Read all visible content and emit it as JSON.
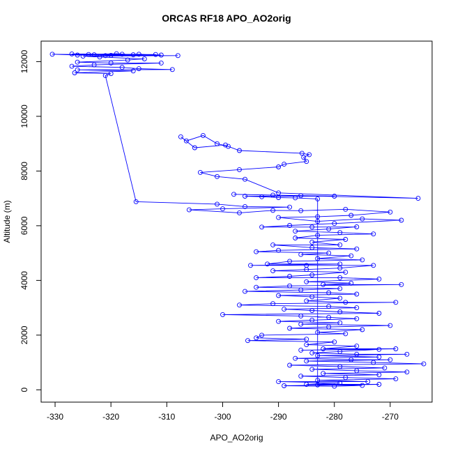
{
  "chart_data": {
    "type": "scatter",
    "title": "ORCAS RF18 APO_AO2orig",
    "xlabel": "APO_AO2orig",
    "ylabel": "Altitude (m)",
    "xlim": [
      -332.5,
      -262.5
    ],
    "ylim": [
      -450,
      12750
    ],
    "xticks": [
      -330,
      -320,
      -310,
      -300,
      -290,
      -280,
      -270
    ],
    "xtick_labels": [
      "-330",
      "-320",
      "-310",
      "-300",
      "-290",
      "-280",
      "-270"
    ],
    "yticks": [
      0,
      2000,
      4000,
      6000,
      8000,
      10000,
      12000
    ],
    "ytick_labels": [
      "0",
      "2000",
      "4000",
      "6000",
      "8000",
      "10000",
      "12000"
    ],
    "grid": false,
    "legend": "none",
    "colors": {
      "series": "#0000ff",
      "axes": "#000000"
    },
    "marker": "open-circle",
    "connected": true,
    "series": [
      {
        "points": [
          [
            -318,
            12270
          ],
          [
            -327,
            12280
          ],
          [
            -312,
            12260
          ],
          [
            -323,
            12250
          ],
          [
            -330.5,
            12270
          ],
          [
            -326,
            12240
          ],
          [
            -320,
            12230
          ],
          [
            -315,
            12270
          ],
          [
            -311,
            12240
          ],
          [
            -324,
            12260
          ],
          [
            -319,
            12290
          ],
          [
            -316,
            12250
          ],
          [
            -321,
            12220
          ],
          [
            -308,
            12220
          ],
          [
            -325,
            12200
          ],
          [
            -322,
            12170
          ],
          [
            -314,
            12100
          ],
          [
            -317,
            12060
          ],
          [
            -326,
            11980
          ],
          [
            -320,
            11950
          ],
          [
            -311,
            11950
          ],
          [
            -323,
            11880
          ],
          [
            -327,
            11830
          ],
          [
            -318,
            11790
          ],
          [
            -315,
            11740
          ],
          [
            -309,
            11710
          ],
          [
            -326,
            11700
          ],
          [
            -316,
            11660
          ],
          [
            -326.5,
            11590
          ],
          [
            -320,
            11560
          ],
          [
            -321,
            11490
          ],
          [
            -315.5,
            6880
          ],
          [
            -301,
            6790
          ],
          [
            -296,
            6700
          ],
          [
            -288,
            6680
          ],
          [
            -300,
            6620
          ],
          [
            -306,
            6580
          ],
          [
            -297,
            6470
          ],
          [
            -291,
            6560
          ],
          [
            -286,
            6550
          ],
          [
            -278,
            6600
          ],
          [
            -270,
            6500
          ],
          [
            -277,
            6380
          ],
          [
            -283,
            6330
          ],
          [
            -290,
            6300
          ],
          [
            -283,
            6160
          ],
          [
            -275,
            6250
          ],
          [
            -268,
            6200
          ],
          [
            -280,
            6080
          ],
          [
            -288,
            6010
          ],
          [
            -293,
            5950
          ],
          [
            -284,
            5950
          ],
          [
            -276,
            5960
          ],
          [
            -281,
            5880
          ],
          [
            -287,
            5800
          ],
          [
            -279,
            5750
          ],
          [
            -273,
            5700
          ],
          [
            -283,
            5650
          ],
          [
            -287,
            5550
          ],
          [
            -278,
            5500
          ],
          [
            -284,
            5400
          ],
          [
            -279,
            5300
          ],
          [
            -291,
            5300
          ],
          [
            -284,
            5200
          ],
          [
            -276,
            5150
          ],
          [
            -290,
            5100
          ],
          [
            -294,
            5050
          ],
          [
            -281,
            5000
          ],
          [
            -286,
            4950
          ],
          [
            -277,
            4900
          ],
          [
            -283,
            4800
          ],
          [
            -275,
            4750
          ],
          [
            -288,
            4700
          ],
          [
            -292,
            4600
          ],
          [
            -279,
            4600
          ],
          [
            -295,
            4550
          ],
          [
            -285,
            4550
          ],
          [
            -273,
            4550
          ],
          [
            -279,
            4450
          ],
          [
            -285,
            4400
          ],
          [
            -291,
            4350
          ],
          [
            -278,
            4300
          ],
          [
            -284,
            4200
          ],
          [
            -288,
            4150
          ],
          [
            -294,
            4100
          ],
          [
            -279,
            4100
          ],
          [
            -272,
            4050
          ],
          [
            -285,
            3950
          ],
          [
            -277,
            3900
          ],
          [
            -282,
            3850
          ],
          [
            -268,
            3850
          ],
          [
            -288,
            3800
          ],
          [
            -294,
            3750
          ],
          [
            -279,
            3700
          ],
          [
            -286,
            3650
          ],
          [
            -296,
            3600
          ],
          [
            -281,
            3550
          ],
          [
            -276,
            3500
          ],
          [
            -290,
            3450
          ],
          [
            -284,
            3400
          ],
          [
            -279,
            3350
          ],
          [
            -285,
            3250
          ],
          [
            -278,
            3200
          ],
          [
            -269,
            3200
          ],
          [
            -291,
            3150
          ],
          [
            -297,
            3100
          ],
          [
            -281,
            3050
          ],
          [
            -276,
            3000
          ],
          [
            -289,
            2950
          ],
          [
            -284,
            2900
          ],
          [
            -279,
            2850
          ],
          [
            -272,
            2800
          ],
          [
            -300,
            2750
          ],
          [
            -286,
            2700
          ],
          [
            -281,
            2650
          ],
          [
            -276,
            2600
          ],
          [
            -284,
            2550
          ],
          [
            -290,
            2500
          ],
          [
            -279,
            2450
          ],
          [
            -286,
            2400
          ],
          [
            -270,
            2350
          ],
          [
            -281,
            2300
          ],
          [
            -288,
            2250
          ],
          [
            -275,
            2200
          ],
          [
            -283,
            2100
          ],
          [
            -278,
            2050
          ],
          [
            -293,
            2000
          ],
          [
            -294,
            1900
          ],
          [
            -285,
            1850
          ],
          [
            -295.5,
            1800
          ],
          [
            -280,
            1750
          ],
          [
            -285,
            1650
          ],
          [
            -276,
            1600
          ],
          [
            -282,
            1500
          ],
          [
            -269,
            1500
          ],
          [
            -286,
            1450
          ],
          [
            -272,
            1480
          ],
          [
            -279,
            1400
          ],
          [
            -284,
            1350
          ],
          [
            -276,
            1300
          ],
          [
            -267,
            1300
          ],
          [
            -283,
            1250
          ],
          [
            -272,
            1200
          ],
          [
            -287,
            1150
          ],
          [
            -277,
            1100
          ],
          [
            -270,
            1100
          ],
          [
            -285,
            1050
          ],
          [
            -273,
            1000
          ],
          [
            -264,
            950
          ],
          [
            -288,
            900
          ],
          [
            -279,
            850
          ],
          [
            -271,
            800
          ],
          [
            -284,
            750
          ],
          [
            -276,
            700
          ],
          [
            -267,
            650
          ],
          [
            -282,
            600
          ],
          [
            -272,
            550
          ],
          [
            -286,
            500
          ],
          [
            -278,
            450
          ],
          [
            -269,
            400
          ],
          [
            -283,
            350
          ],
          [
            -274,
            300
          ],
          [
            -290,
            300
          ],
          [
            -279,
            250
          ],
          [
            -285,
            200
          ],
          [
            -272,
            200
          ],
          [
            -289,
            150
          ],
          [
            -280,
            130
          ],
          [
            -275,
            160
          ],
          [
            -283,
            180
          ],
          [
            -283,
            6980
          ],
          [
            -287,
            7020
          ],
          [
            -290,
            7030
          ],
          [
            -293,
            7060
          ],
          [
            -296,
            7080
          ],
          [
            -280,
            7080
          ],
          [
            -286,
            7100
          ],
          [
            -291,
            7120
          ],
          [
            -298,
            7150
          ],
          [
            -265,
            7000
          ],
          [
            -290,
            7200
          ],
          [
            -296,
            7700
          ],
          [
            -301,
            7800
          ],
          [
            -304,
            7950
          ],
          [
            -297,
            8050
          ],
          [
            -290,
            8150
          ],
          [
            -289,
            8250
          ],
          [
            -285,
            8350
          ],
          [
            -285.5,
            8500
          ],
          [
            -284.5,
            8600
          ],
          [
            -285.8,
            8650
          ],
          [
            -297,
            8750
          ],
          [
            -299,
            8900
          ],
          [
            -301,
            9000
          ],
          [
            -303.5,
            9300
          ],
          [
            -306.5,
            9100
          ],
          [
            -307.5,
            9250
          ],
          [
            -305,
            8850
          ],
          [
            -299.5,
            8950
          ]
        ]
      }
    ]
  }
}
